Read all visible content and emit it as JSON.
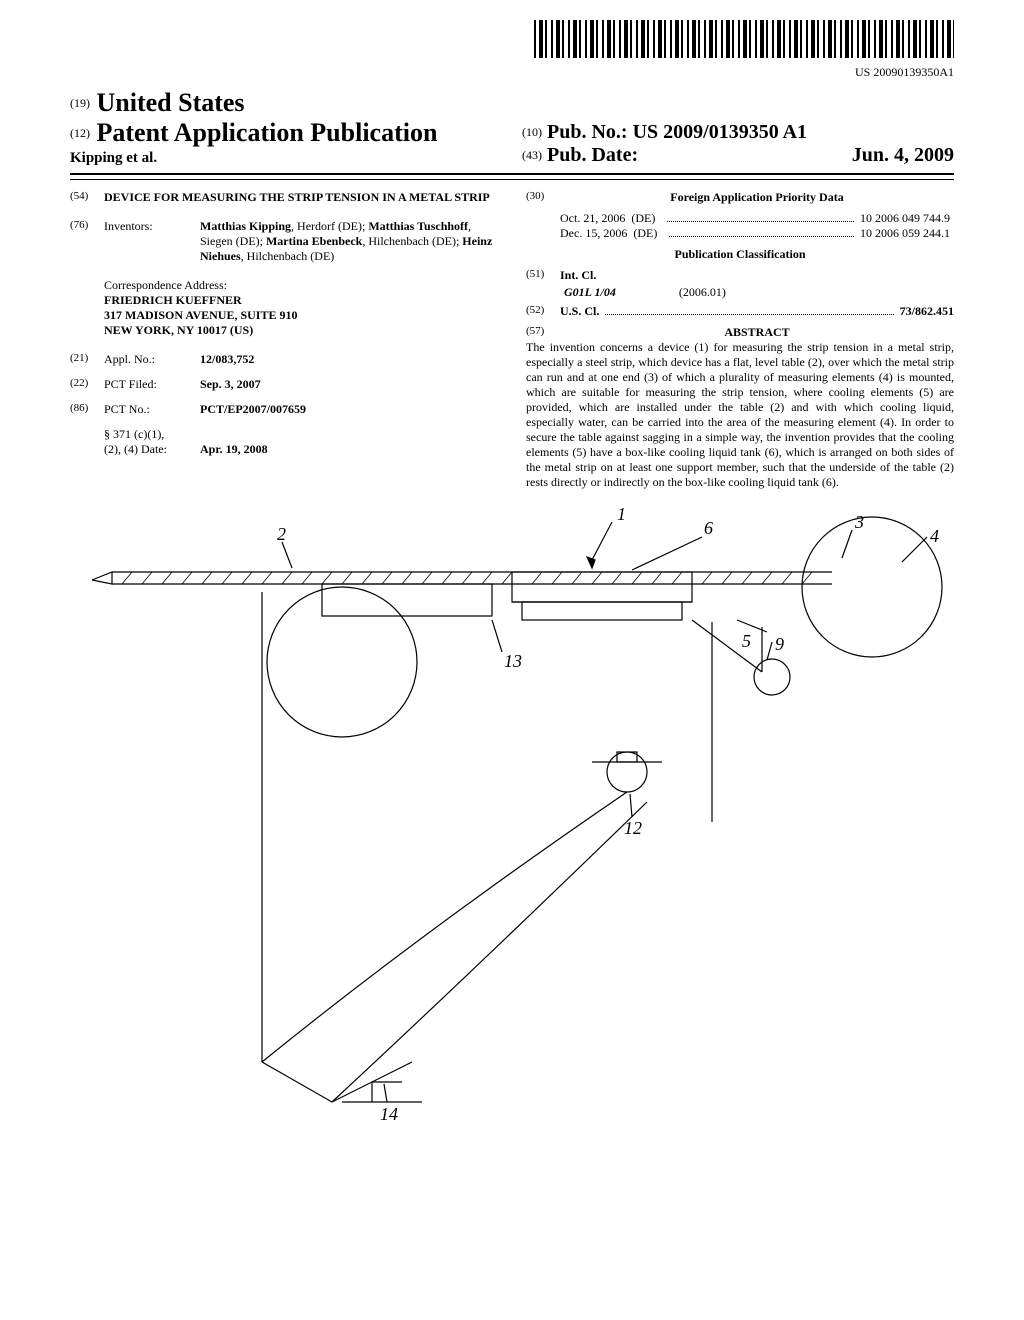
{
  "barcode_text": "US 20090139350A1",
  "header": {
    "country_prefix": "(19)",
    "country": "United States",
    "doc_type_prefix": "(12)",
    "doc_type": "Patent Application Publication",
    "applicant_line": "Kipping et al.",
    "pubno_prefix": "(10)",
    "pubno_label": "Pub. No.:",
    "pubno_value": "US 2009/0139350 A1",
    "pubdate_prefix": "(43)",
    "pubdate_label": "Pub. Date:",
    "pubdate_value": "Jun. 4, 2009"
  },
  "left": {
    "title_num": "(54)",
    "title": "DEVICE FOR MEASURING THE STRIP TENSION IN A METAL STRIP",
    "inventors_num": "(76)",
    "inventors_label": "Inventors:",
    "inventors_html": "<b>Matthias Kipping</b>, Herdorf (DE); <b>Matthias Tuschhoff</b>, Siegen (DE); <b>Martina Ebenbeck</b>, Hilchenbach (DE); <b>Heinz Niehues</b>, Hilchenbach (DE)",
    "corr_label": "Correspondence Address:",
    "corr_l1": "FRIEDRICH KUEFFNER",
    "corr_l2": "317 MADISON AVENUE, SUITE 910",
    "corr_l3": "NEW YORK, NY 10017 (US)",
    "appl_num_num": "(21)",
    "appl_num_label": "Appl. No.:",
    "appl_num_value": "12/083,752",
    "pct_filed_num": "(22)",
    "pct_filed_label": "PCT Filed:",
    "pct_filed_value": "Sep. 3, 2007",
    "pct_no_num": "(86)",
    "pct_no_label": "PCT No.:",
    "pct_no_value": "PCT/EP2007/007659",
    "s371_l1": "§ 371 (c)(1),",
    "s371_l2": "(2), (4) Date:",
    "s371_value": "Apr. 19, 2008"
  },
  "right": {
    "foreign_num": "(30)",
    "foreign_heading": "Foreign Application Priority Data",
    "foreign_rows": [
      {
        "date": "Oct. 21, 2006",
        "cc": "(DE)",
        "num": "10 2006 049 744.9"
      },
      {
        "date": "Dec. 15, 2006",
        "cc": "(DE)",
        "num": "10 2006 059 244.1"
      }
    ],
    "pubclass_heading": "Publication Classification",
    "intcl_num": "(51)",
    "intcl_label": "Int. Cl.",
    "intcl_code": "G01L 1/04",
    "intcl_year": "(2006.01)",
    "uscl_num": "(52)",
    "uscl_label": "U.S. Cl.",
    "uscl_value": "73/862.451",
    "abstract_num": "(57)",
    "abstract_heading": "ABSTRACT",
    "abstract_text": "The invention concerns a device (1) for measuring the strip tension in a metal strip, especially a steel strip, which device has a flat, level table (2), over which the metal strip can run and at one end (3) of which a plurality of measuring elements (4) is mounted, which are suitable for measuring the strip tension, where cooling elements (5) are provided, which are installed under the table (2) and with which cooling liquid, especially water, can be carried into the area of the measuring element (4). In order to secure the table against sagging in a simple way, the invention provides that the cooling elements (5) have a box-like cooling liquid tank (6), which is arranged on both sides of the metal strip on at least one support member, such that the underside of the table (2) rests directly or indirectly on the box-like cooling liquid tank (6)."
  },
  "figure": {
    "labels": [
      "1",
      "2",
      "3",
      "4",
      "5",
      "6",
      "9",
      "12",
      "13",
      "14"
    ],
    "stroke": "#000000",
    "stroke_width": 1.2,
    "font_size": 16,
    "font_style": "italic"
  },
  "colors": {
    "text": "#000000",
    "bg": "#ffffff"
  }
}
